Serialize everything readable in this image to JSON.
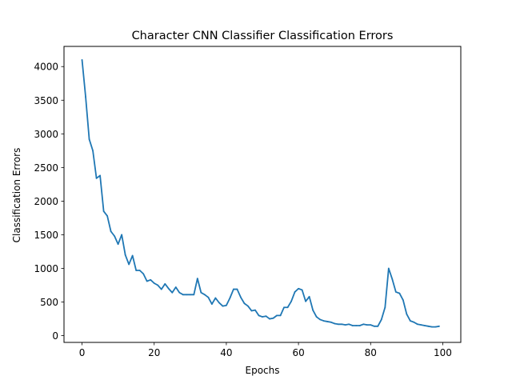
{
  "chart_data": {
    "type": "line",
    "title": "Character CNN Classifier Classification Errors",
    "xlabel": "Epochs",
    "ylabel": "Classification Errors",
    "xlim": [
      -5,
      105
    ],
    "ylim": [
      -100,
      4300
    ],
    "xticks": [
      0,
      20,
      40,
      60,
      80,
      100
    ],
    "yticks": [
      0,
      500,
      1000,
      1500,
      2000,
      2500,
      3000,
      3500,
      4000
    ],
    "grid": false,
    "line_color": "#1f77b4",
    "series": [
      {
        "x": [
          0,
          1,
          2,
          3,
          4,
          5,
          6,
          7,
          8,
          9,
          10,
          11,
          12,
          13,
          14,
          15,
          16,
          17,
          18,
          19,
          20,
          21,
          22,
          23,
          24,
          25,
          26,
          27,
          28,
          29,
          30,
          31,
          32,
          33,
          34,
          35,
          36,
          37,
          38,
          39,
          40,
          41,
          42,
          43,
          44,
          45,
          46,
          47,
          48,
          49,
          50,
          51,
          52,
          53,
          54,
          55,
          56,
          57,
          58,
          59,
          60,
          61,
          62,
          63,
          64,
          65,
          66,
          67,
          68,
          69,
          70,
          71,
          72,
          73,
          74,
          75,
          76,
          77,
          78,
          79,
          80,
          81,
          82,
          83,
          84,
          85,
          86,
          87,
          88,
          89,
          90,
          91,
          92,
          93,
          94,
          95,
          96,
          97,
          98,
          99
        ],
        "values": [
          4100,
          3550,
          2920,
          2750,
          2340,
          2380,
          1850,
          1780,
          1550,
          1480,
          1360,
          1500,
          1200,
          1060,
          1190,
          970,
          970,
          920,
          810,
          830,
          780,
          750,
          690,
          770,
          700,
          640,
          720,
          640,
          610,
          610,
          610,
          610,
          850,
          640,
          610,
          570,
          470,
          560,
          490,
          440,
          450,
          560,
          690,
          690,
          570,
          480,
          440,
          370,
          380,
          300,
          280,
          290,
          250,
          260,
          300,
          300,
          420,
          420,
          510,
          650,
          700,
          680,
          510,
          580,
          380,
          280,
          240,
          220,
          210,
          200,
          180,
          170,
          170,
          160,
          170,
          150,
          150,
          150,
          170,
          160,
          160,
          140,
          140,
          240,
          420,
          1000,
          840,
          650,
          630,
          530,
          320,
          220,
          200,
          170,
          160,
          150,
          140,
          130,
          130,
          140
        ]
      }
    ]
  }
}
